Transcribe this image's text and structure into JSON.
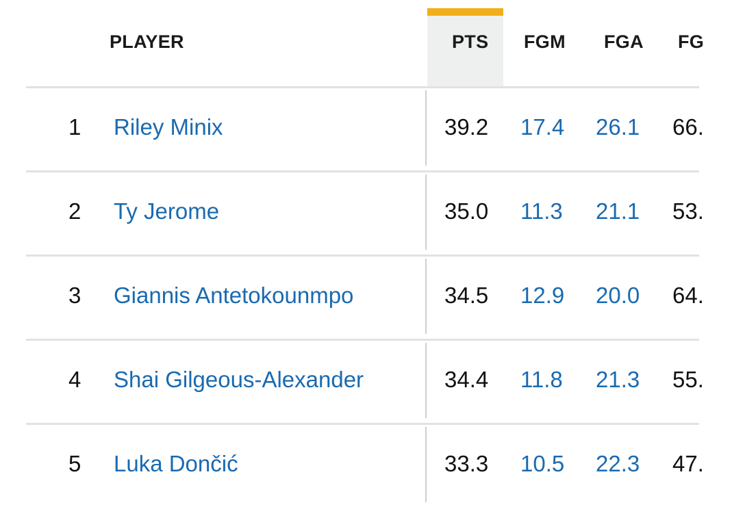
{
  "columns": {
    "player": "PLAYER",
    "pts": "PTS",
    "fgm": "FGM",
    "fga": "FGA",
    "fgp": "FG"
  },
  "sort_column": "PTS",
  "accent_color": "#f0ae1a",
  "link_color": "#1a6ab0",
  "rows": [
    {
      "rank": "1",
      "player": "Riley Minix",
      "pts": "39.2",
      "fgm": "17.4",
      "fga": "26.1",
      "fgp": "66."
    },
    {
      "rank": "2",
      "player": "Ty Jerome",
      "pts": "35.0",
      "fgm": "11.3",
      "fga": "21.1",
      "fgp": "53."
    },
    {
      "rank": "3",
      "player": "Giannis Antetokounmpo",
      "pts": "34.5",
      "fgm": "12.9",
      "fga": "20.0",
      "fgp": "64."
    },
    {
      "rank": "4",
      "player": "Shai Gilgeous-Alexander",
      "pts": "34.4",
      "fgm": "11.8",
      "fga": "21.3",
      "fgp": "55."
    },
    {
      "rank": "5",
      "player": "Luka Dončić",
      "pts": "33.3",
      "fgm": "10.5",
      "fga": "22.3",
      "fgp": "47."
    }
  ]
}
